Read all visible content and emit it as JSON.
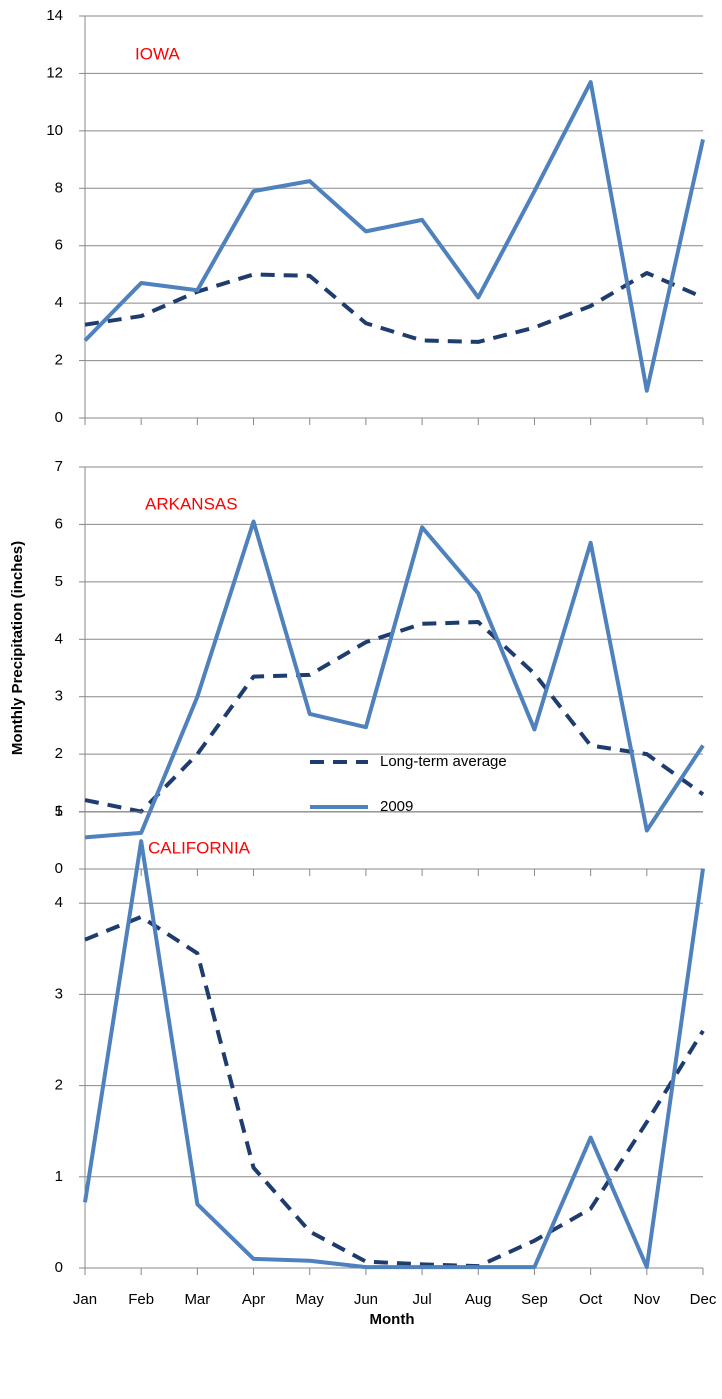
{
  "chart_data": [
    {
      "type": "line",
      "annotation": "IOWA",
      "annotation_color": "#ff0000",
      "ylim": [
        0,
        14
      ],
      "yticks": [
        0,
        2,
        4,
        6,
        8,
        10,
        12,
        14
      ],
      "grid": true,
      "series": [
        {
          "color": "#1f3c6e",
          "dashed": true,
          "values": [
            3.25,
            3.55,
            4.4,
            5.0,
            4.95,
            3.3,
            2.7,
            2.65,
            3.15,
            3.9,
            5.05,
            4.2
          ]
        },
        {
          "color": "#4f81bd",
          "dashed": false,
          "values": [
            2.7,
            4.7,
            4.45,
            7.9,
            8.25,
            6.5,
            6.9,
            4.2,
            7.9,
            11.7,
            0.95,
            9.7
          ]
        }
      ]
    },
    {
      "type": "line",
      "annotation": "ARKANSAS",
      "annotation_color": "#ff0000",
      "y_label": "Monthly Precipitation (inches)",
      "ylim": [
        0,
        7
      ],
      "yticks": [
        0,
        1,
        2,
        3,
        4,
        5,
        6,
        7
      ],
      "grid": true,
      "legend": "lower-center",
      "series": [
        {
          "name": "Long-term average",
          "color": "#1f3c6e",
          "dashed": true,
          "values": [
            1.2,
            1.0,
            2.0,
            3.35,
            3.38,
            3.95,
            4.27,
            4.3,
            3.4,
            2.15,
            2.0,
            1.3
          ]
        },
        {
          "name": "2009",
          "color": "#4f81bd",
          "dashed": false,
          "values": [
            0.55,
            0.63,
            3.0,
            6.05,
            2.7,
            2.47,
            5.95,
            4.8,
            2.43,
            5.68,
            0.67,
            2.15
          ]
        }
      ]
    },
    {
      "type": "line",
      "annotation": "CALIFORNIA",
      "annotation_color": "#ff0000",
      "x_label": "Month",
      "categories": [
        "Jan",
        "Feb",
        "Mar",
        "Apr",
        "May",
        "Jun",
        "Jul",
        "Aug",
        "Sep",
        "Oct",
        "Nov",
        "Dec"
      ],
      "ylim": [
        0,
        5
      ],
      "yticks": [
        0,
        1,
        2,
        3,
        4,
        5
      ],
      "grid": true,
      "series": [
        {
          "color": "#1f3c6e",
          "dashed": true,
          "values": [
            3.6,
            3.85,
            3.45,
            1.1,
            0.4,
            0.07,
            0.04,
            0.02,
            0.3,
            0.65,
            1.6,
            2.6
          ]
        },
        {
          "color": "#4f81bd",
          "dashed": false,
          "values": [
            0.72,
            4.68,
            0.7,
            0.1,
            0.08,
            0.01,
            0.01,
            0.01,
            0.01,
            1.43,
            0.01,
            4.38
          ]
        }
      ]
    }
  ]
}
